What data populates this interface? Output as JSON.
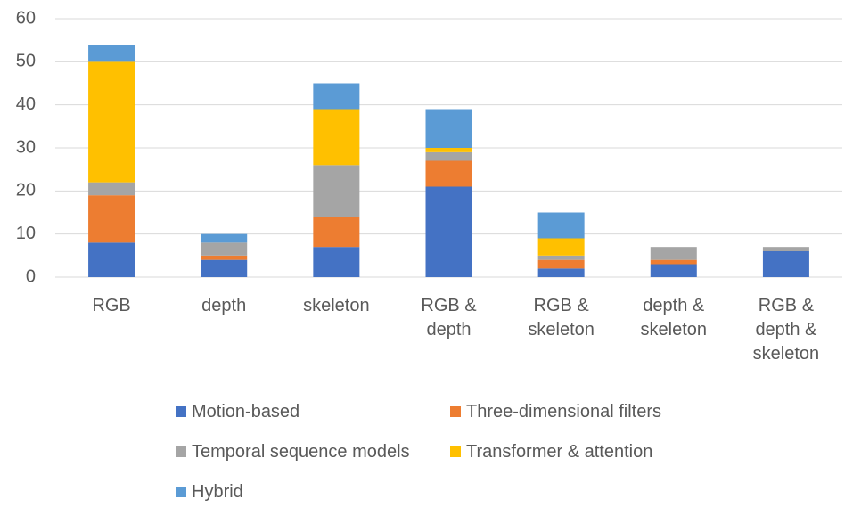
{
  "chart_data": {
    "type": "stacked_bar",
    "categories": [
      "RGB",
      "depth",
      "skeleton",
      "RGB & depth",
      "RGB & skeleton",
      "depth & skeleton",
      "RGB & depth & skeleton"
    ],
    "series": [
      {
        "name": "Motion-based",
        "color": "#4472c4",
        "values": [
          8,
          4,
          7,
          21,
          2,
          3,
          6
        ]
      },
      {
        "name": "Three-dimensional filters",
        "color": "#ed7d31",
        "values": [
          11,
          1,
          7,
          6,
          2,
          1,
          0
        ]
      },
      {
        "name": "Temporal sequence models",
        "color": "#a5a5a5",
        "values": [
          3,
          3,
          12,
          2,
          1,
          3,
          1
        ]
      },
      {
        "name": "Transformer & attention",
        "color": "#ffc000",
        "values": [
          28,
          0,
          13,
          1,
          4,
          0,
          0
        ]
      },
      {
        "name": "Hybrid",
        "color": "#5b9bd5",
        "values": [
          4,
          2,
          6,
          9,
          6,
          0,
          0
        ]
      }
    ],
    "ylim": [
      0,
      60
    ],
    "yticks": [
      0,
      10,
      20,
      30,
      40,
      50,
      60
    ],
    "grid": true,
    "legend": "bottom"
  }
}
